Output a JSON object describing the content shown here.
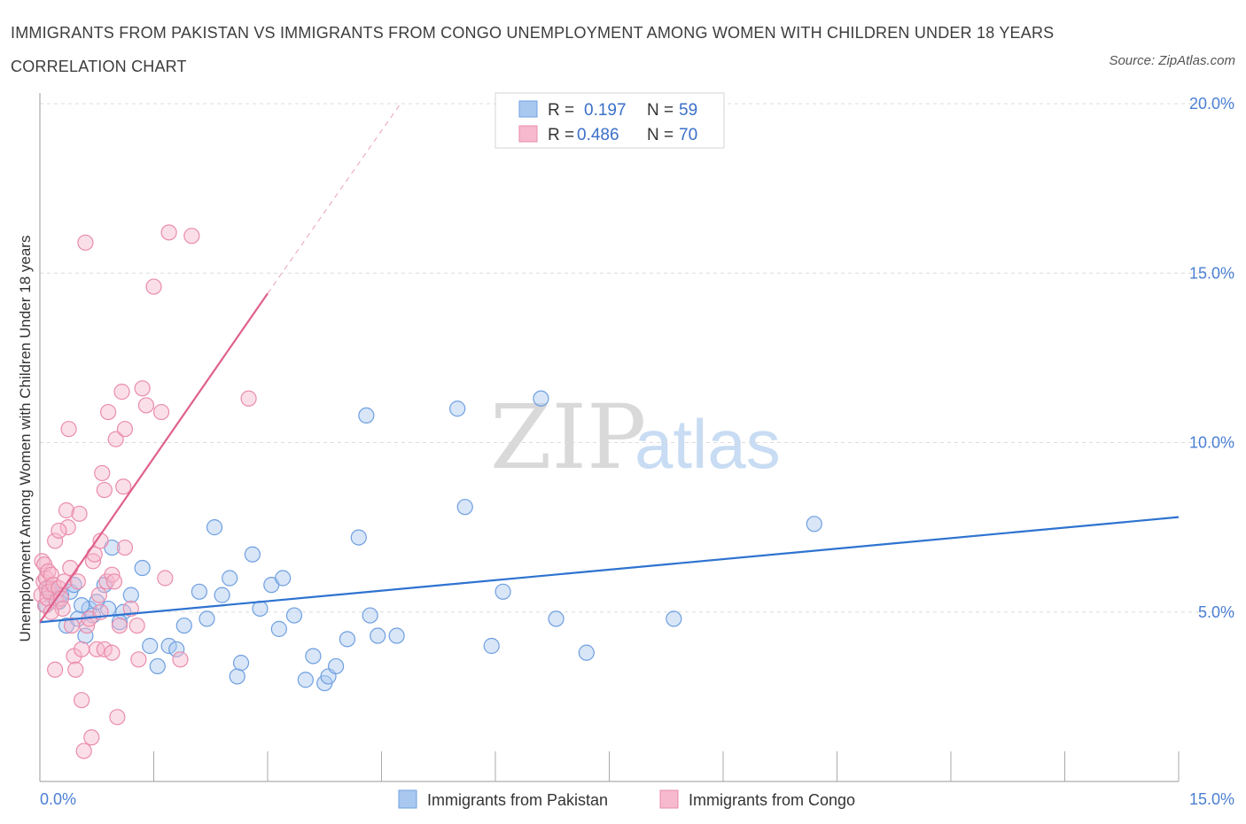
{
  "title": "IMMIGRANTS FROM PAKISTAN VS IMMIGRANTS FROM CONGO UNEMPLOYMENT AMONG WOMEN WITH CHILDREN UNDER 18 YEARS CORRELATION CHART",
  "source": "Source: ZipAtlas.com",
  "watermark": {
    "zip": "ZIP",
    "atlas": "atlas"
  },
  "colors": {
    "pakistan_fill": "#a9c8f0",
    "pakistan_stroke": "#6f9fe0",
    "pakistan_line": "#2e73d0",
    "congo_fill": "#f6b9cd",
    "congo_stroke": "#ea8cab",
    "congo_line": "#e0608c",
    "tick_text": "#4a7fd4"
  },
  "legend": {
    "rows": [
      {
        "r_label": "R =",
        "r_value": "0.197",
        "n_label": "N =",
        "n_value": "59"
      },
      {
        "r_label": "R =",
        "r_value": "0.486",
        "n_label": "N =",
        "n_value": "70"
      }
    ]
  },
  "chart_data": {
    "type": "scatter",
    "title": "IMMIGRANTS FROM PAKISTAN VS IMMIGRANTS FROM CONGO UNEMPLOYMENT AMONG WOMEN WITH CHILDREN UNDER 18 YEARS CORRELATION CHART",
    "xlabel": "",
    "ylabel": "Unemployment Among Women with Children Under 18 years",
    "xlim": [
      0,
      15
    ],
    "ylim": [
      0,
      20
    ],
    "x_tick_labels": [
      "0.0%",
      "15.0%"
    ],
    "y_tick_labels": [
      "5.0%",
      "10.0%",
      "15.0%",
      "20.0%"
    ],
    "y_ticks": [
      5,
      10,
      15,
      20
    ],
    "grid": true,
    "legend_position": "top-center",
    "series": [
      {
        "name": "Immigrants from Pakistan",
        "R": 0.197,
        "N": 59,
        "trend": {
          "x": [
            0,
            15
          ],
          "y": [
            4.7,
            7.8
          ],
          "dashed_extension": false
        },
        "points": [
          [
            0.08,
            5.2
          ],
          [
            0.15,
            5.5
          ],
          [
            0.25,
            5.3
          ],
          [
            0.35,
            4.6
          ],
          [
            0.4,
            5.6
          ],
          [
            0.5,
            4.8
          ],
          [
            0.6,
            4.3
          ],
          [
            0.65,
            5.1
          ],
          [
            0.7,
            4.9
          ],
          [
            0.75,
            5.3
          ],
          [
            0.85,
            5.8
          ],
          [
            0.9,
            5.1
          ],
          [
            1.1,
            5.0
          ],
          [
            1.2,
            5.5
          ],
          [
            1.35,
            6.3
          ],
          [
            1.45,
            4.0
          ],
          [
            1.55,
            3.4
          ],
          [
            1.7,
            4.0
          ],
          [
            1.8,
            3.9
          ],
          [
            1.9,
            4.6
          ],
          [
            2.1,
            5.6
          ],
          [
            2.2,
            4.8
          ],
          [
            2.3,
            7.5
          ],
          [
            2.4,
            5.5
          ],
          [
            2.5,
            6.0
          ],
          [
            2.6,
            3.1
          ],
          [
            2.65,
            3.5
          ],
          [
            2.8,
            6.7
          ],
          [
            2.9,
            5.1
          ],
          [
            3.05,
            5.8
          ],
          [
            3.15,
            4.5
          ],
          [
            3.2,
            6.0
          ],
          [
            3.35,
            4.9
          ],
          [
            3.5,
            3.0
          ],
          [
            3.6,
            3.7
          ],
          [
            3.75,
            2.9
          ],
          [
            3.8,
            3.1
          ],
          [
            3.9,
            3.4
          ],
          [
            4.05,
            4.2
          ],
          [
            4.2,
            7.2
          ],
          [
            4.3,
            10.8
          ],
          [
            4.35,
            4.9
          ],
          [
            4.45,
            4.3
          ],
          [
            4.7,
            4.3
          ],
          [
            5.5,
            11.0
          ],
          [
            5.6,
            8.1
          ],
          [
            5.95,
            4.0
          ],
          [
            6.1,
            5.6
          ],
          [
            6.6,
            11.3
          ],
          [
            6.8,
            4.8
          ],
          [
            7.2,
            3.8
          ],
          [
            8.35,
            4.8
          ],
          [
            0.28,
            5.5
          ],
          [
            0.55,
            5.2
          ],
          [
            0.95,
            6.9
          ],
          [
            0.12,
            5.7
          ],
          [
            0.45,
            5.8
          ],
          [
            1.05,
            4.7
          ],
          [
            10.2,
            7.6
          ]
        ]
      },
      {
        "name": "Immigrants from Congo",
        "R": 0.486,
        "N": 70,
        "trend": {
          "x": [
            0,
            3
          ],
          "y": [
            4.7,
            14.4
          ],
          "dashed_extension": true,
          "dashed_to": {
            "x": 4.75,
            "y": 20
          }
        },
        "points": [
          [
            0.02,
            5.5
          ],
          [
            0.03,
            6.5
          ],
          [
            0.05,
            5.9
          ],
          [
            0.06,
            6.4
          ],
          [
            0.07,
            5.2
          ],
          [
            0.08,
            6.0
          ],
          [
            0.09,
            5.7
          ],
          [
            0.1,
            5.4
          ],
          [
            0.11,
            6.2
          ],
          [
            0.12,
            5.6
          ],
          [
            0.15,
            6.1
          ],
          [
            0.18,
            5.8
          ],
          [
            0.2,
            3.3
          ],
          [
            0.2,
            7.1
          ],
          [
            0.22,
            5.3
          ],
          [
            0.25,
            5.7
          ],
          [
            0.28,
            5.4
          ],
          [
            0.3,
            5.1
          ],
          [
            0.32,
            5.9
          ],
          [
            0.35,
            8.0
          ],
          [
            0.37,
            7.5
          ],
          [
            0.38,
            10.4
          ],
          [
            0.4,
            6.3
          ],
          [
            0.42,
            4.6
          ],
          [
            0.45,
            3.7
          ],
          [
            0.47,
            3.3
          ],
          [
            0.5,
            5.9
          ],
          [
            0.52,
            7.9
          ],
          [
            0.55,
            3.9
          ],
          [
            0.55,
            2.4
          ],
          [
            0.58,
            0.9
          ],
          [
            0.6,
            15.9
          ],
          [
            0.62,
            4.6
          ],
          [
            0.65,
            4.8
          ],
          [
            0.68,
            1.3
          ],
          [
            0.7,
            6.5
          ],
          [
            0.72,
            6.7
          ],
          [
            0.75,
            3.9
          ],
          [
            0.78,
            5.5
          ],
          [
            0.8,
            5.0
          ],
          [
            0.8,
            7.1
          ],
          [
            0.82,
            9.1
          ],
          [
            0.85,
            8.6
          ],
          [
            0.85,
            3.9
          ],
          [
            0.88,
            5.9
          ],
          [
            0.9,
            10.9
          ],
          [
            0.95,
            6.1
          ],
          [
            0.95,
            3.8
          ],
          [
            0.98,
            5.9
          ],
          [
            1.0,
            10.1
          ],
          [
            1.02,
            1.9
          ],
          [
            1.05,
            4.6
          ],
          [
            1.08,
            11.5
          ],
          [
            1.1,
            8.7
          ],
          [
            1.12,
            6.9
          ],
          [
            1.12,
            10.4
          ],
          [
            1.2,
            5.1
          ],
          [
            1.28,
            4.6
          ],
          [
            1.3,
            3.6
          ],
          [
            1.35,
            11.6
          ],
          [
            1.4,
            11.1
          ],
          [
            1.5,
            14.6
          ],
          [
            1.6,
            10.9
          ],
          [
            1.65,
            6.0
          ],
          [
            1.7,
            16.2
          ],
          [
            1.85,
            3.6
          ],
          [
            2.0,
            16.1
          ],
          [
            2.75,
            11.3
          ],
          [
            0.15,
            5.0
          ],
          [
            0.25,
            7.4
          ]
        ]
      }
    ]
  }
}
